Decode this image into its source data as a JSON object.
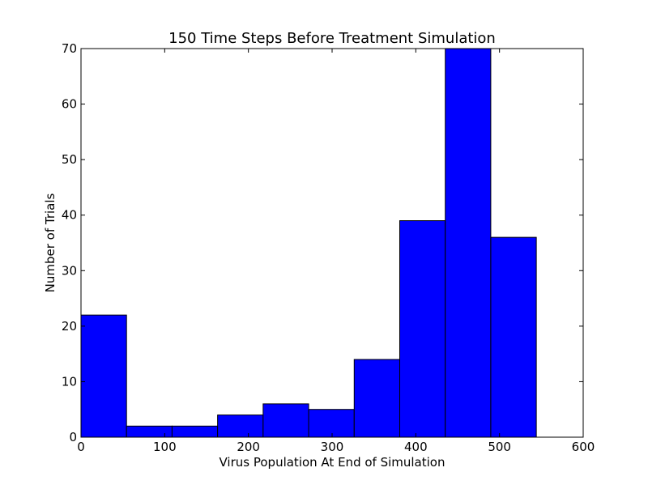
{
  "chart_data": {
    "type": "bar",
    "title": "150 Time Steps Before Treatment Simulation",
    "xlabel": "Virus Population At End of Simulation",
    "ylabel": "Number of Trials",
    "xlim": [
      0,
      600
    ],
    "ylim": [
      0,
      70
    ],
    "xticks": [
      "0",
      "100",
      "200",
      "300",
      "400",
      "500",
      "600"
    ],
    "yticks": [
      "0",
      "10",
      "20",
      "30",
      "40",
      "50",
      "60",
      "70"
    ],
    "bins": [
      {
        "start": 0,
        "end": 54.4,
        "count": 22
      },
      {
        "start": 54.4,
        "end": 108.8,
        "count": 2
      },
      {
        "start": 108.8,
        "end": 163.2,
        "count": 2
      },
      {
        "start": 163.2,
        "end": 217.6,
        "count": 4
      },
      {
        "start": 217.6,
        "end": 272.0,
        "count": 6
      },
      {
        "start": 272.0,
        "end": 326.4,
        "count": 5
      },
      {
        "start": 326.4,
        "end": 380.8,
        "count": 14
      },
      {
        "start": 380.8,
        "end": 435.2,
        "count": 39
      },
      {
        "start": 435.2,
        "end": 489.6,
        "count": 70
      },
      {
        "start": 489.6,
        "end": 544.0,
        "count": 36
      }
    ],
    "bar_color": "#0000ff",
    "edge_color": "#000000",
    "grid": false,
    "legend": false
  }
}
